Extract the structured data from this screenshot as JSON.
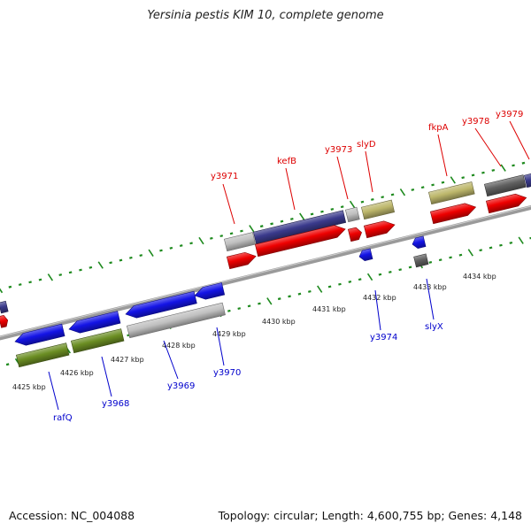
{
  "title": "Yersinia pestis KIM 10, complete genome",
  "footer": {
    "accession": "Accession: NC_004088",
    "topology": "Topology: circular; Length: 4,600,755 bp; Genes: 4,148"
  },
  "colors": {
    "backbone": "#8a8a8a",
    "tick": "#1e8a1e",
    "label_top": "#dd0000",
    "label_bottom": "#0000cc",
    "gene_red": "#ee0000",
    "gene_blue": "#1414e6",
    "gene_navy": "#3a3a8c",
    "gene_silver": "#c0c0c0",
    "gene_olive": "#6b8e23",
    "gene_khaki": "#bdb76b",
    "gene_dark_grey": "#606060"
  },
  "map": {
    "kbp_labels": [
      "4425 kbp",
      "4426 kbp",
      "4427 kbp",
      "4428 kbp",
      "4429 kbp",
      "4430 kbp",
      "4431 kbp",
      "4432 kbp",
      "4433 kbp",
      "4434 kbp"
    ],
    "top_gene_labels": [
      "y3971",
      "kefB",
      "y3973",
      "slyD",
      "fkpA",
      "y3978",
      "y3979"
    ],
    "bottom_gene_labels": [
      "rafQ",
      "y3968",
      "y3969",
      "y3970",
      "y3974",
      "slyX"
    ]
  }
}
